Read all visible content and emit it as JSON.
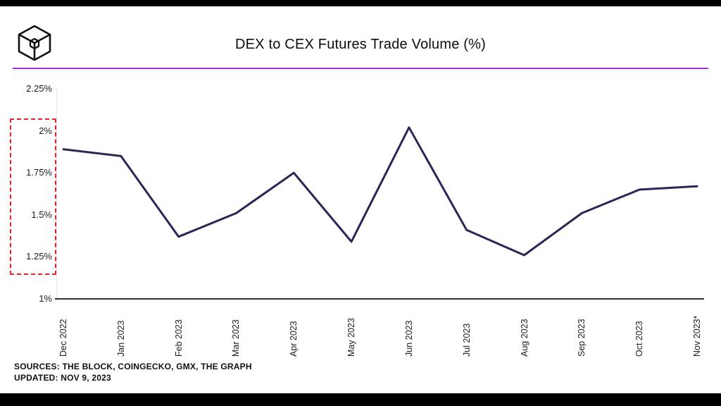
{
  "header": {
    "title": "DEX to CEX Futures Trade Volume (%)",
    "logo": "the-block-cube-logo"
  },
  "footer": {
    "sources": "SOURCES: THE BLOCK, COINGECKO, GMX, THE GRAPH",
    "updated": "UPDATED: NOV 9, 2023"
  },
  "colors": {
    "accent": "#a832e8",
    "line": "#2b2657",
    "highlight": "#e0232e"
  },
  "chart_data": {
    "type": "line",
    "title": "DEX to CEX Futures Trade Volume (%)",
    "categories": [
      "Dec 2022",
      "Jan 2023",
      "Feb 2023",
      "Mar 2023",
      "Apr 2023",
      "May 2023",
      "Jun 2023",
      "Jul 2023",
      "Aug 2023",
      "Sep 2023",
      "Oct 2023",
      "Nov 2023*"
    ],
    "values": [
      1.89,
      1.85,
      1.37,
      1.51,
      1.75,
      1.34,
      2.02,
      1.41,
      1.26,
      1.51,
      1.65,
      1.67
    ],
    "xlabel": "",
    "ylabel": "",
    "ylim": [
      1,
      2.25
    ],
    "yticks": [
      {
        "value": 2.25,
        "label": "2.25%"
      },
      {
        "value": 2.0,
        "label": "2%"
      },
      {
        "value": 1.75,
        "label": "1.75%"
      },
      {
        "value": 1.5,
        "label": "1.5%"
      },
      {
        "value": 1.25,
        "label": "1.25%"
      },
      {
        "value": 1.0,
        "label": "1%"
      }
    ],
    "grid": "none",
    "legend": "none",
    "annotations": [
      {
        "type": "dashed-box",
        "color": "#e0232e",
        "region": "y-axis labels from 2% down to 1.25%"
      }
    ]
  }
}
